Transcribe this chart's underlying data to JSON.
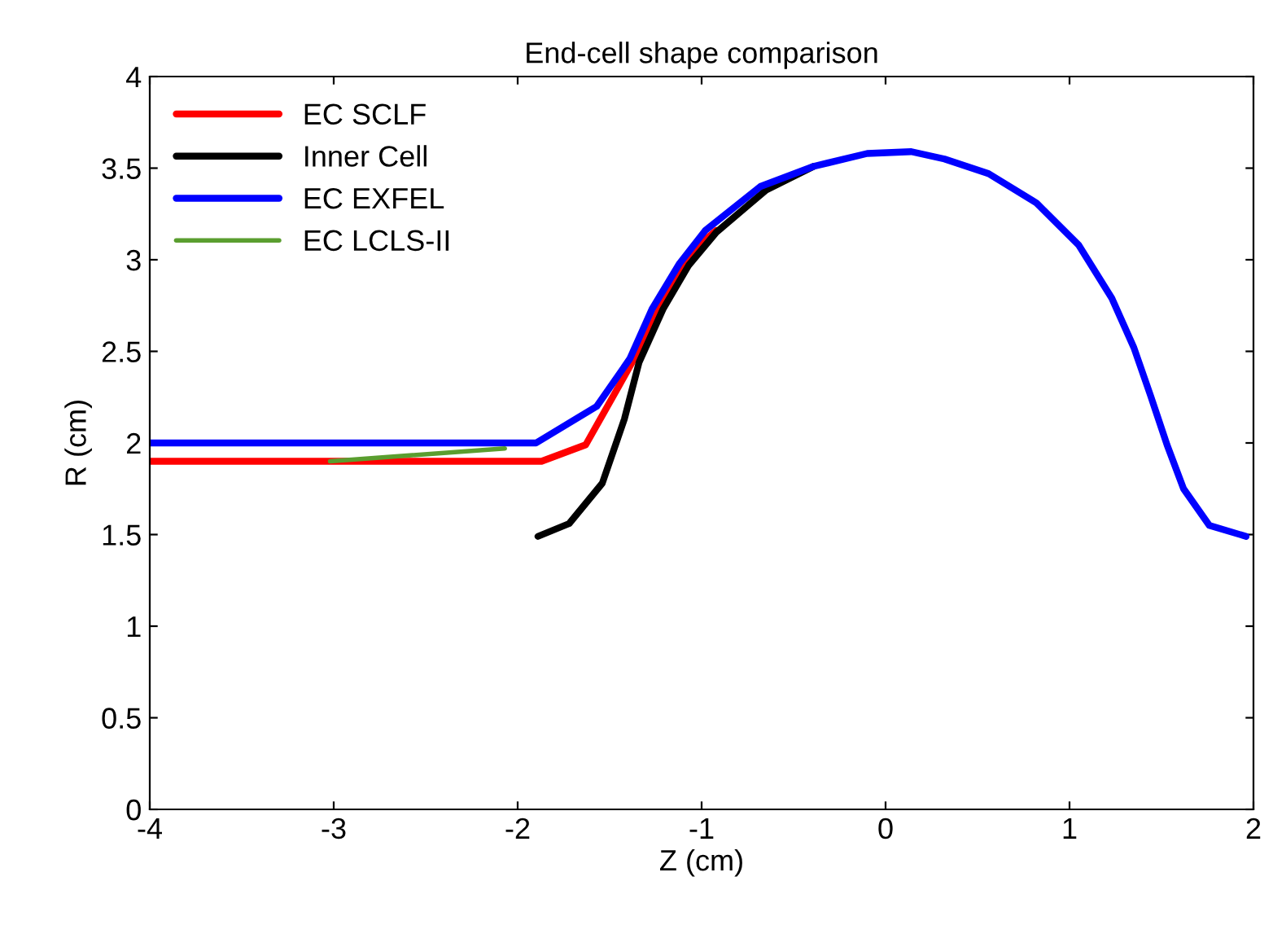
{
  "chart_data": {
    "type": "line",
    "title": "End-cell shape comparison",
    "xlabel": "Z (cm)",
    "ylabel": "R (cm)",
    "xlim": [
      -4,
      2
    ],
    "xticks": [
      -4,
      -3,
      -2,
      -1,
      0,
      1,
      2
    ],
    "ylim": [
      0,
      4
    ],
    "yticks": [
      0,
      0.5,
      1,
      1.5,
      2,
      2.5,
      3,
      3.5,
      4
    ],
    "grid": false,
    "legend": "top left",
    "marker": "none",
    "line_style": "solid",
    "series": [
      {
        "name": "EC SCLF",
        "color": "#ff0000",
        "x": [
          -4,
          -1.87,
          -1.63,
          -1.45,
          -1.3,
          -1.19,
          -1.04,
          -0.92
        ],
        "values": [
          1.9,
          1.9,
          1.99,
          2.31,
          2.58,
          2.82,
          3.06,
          3.16
        ]
      },
      {
        "name": "Inner Cell",
        "color": "#000000",
        "x": [
          -1.89,
          -1.72,
          -1.54,
          -1.42,
          -1.34,
          -1.21,
          -1.07,
          -0.92,
          -0.65,
          -0.39
        ],
        "values": [
          1.49,
          1.56,
          1.78,
          2.13,
          2.44,
          2.73,
          2.97,
          3.15,
          3.38,
          3.51
        ]
      },
      {
        "name": "EC EXFEL",
        "color": "#0000ff",
        "x": [
          -4,
          -1.9,
          -1.57,
          -1.39,
          -1.27,
          -1.12,
          -0.98,
          -0.68,
          -0.39,
          -0.1,
          0.14,
          0.32,
          0.56,
          0.82,
          1.05,
          1.23,
          1.35,
          1.44,
          1.53,
          1.62,
          1.76,
          1.96
        ],
        "values": [
          2.0,
          2.0,
          2.2,
          2.46,
          2.73,
          2.98,
          3.16,
          3.4,
          3.51,
          3.58,
          3.59,
          3.55,
          3.47,
          3.31,
          3.08,
          2.79,
          2.52,
          2.26,
          1.99,
          1.75,
          1.55,
          1.49
        ]
      },
      {
        "name": "EC LCLS-II",
        "color": "#5a9e2f",
        "x": [
          -3.02,
          -2.07
        ],
        "values": [
          1.9,
          1.97
        ]
      }
    ]
  }
}
